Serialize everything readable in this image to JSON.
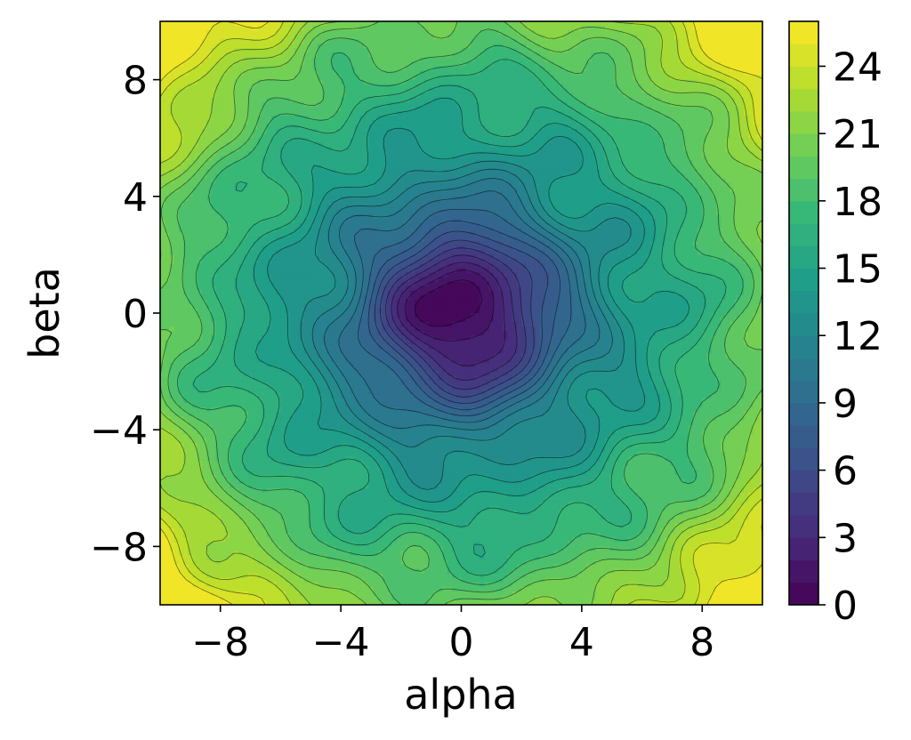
{
  "chart_data": {
    "type": "contourf",
    "title": "",
    "xlabel": "alpha",
    "ylabel": "beta",
    "xlim": [
      -10,
      10
    ],
    "ylim": [
      -10,
      10
    ],
    "x_ticks": [
      -8,
      -4,
      0,
      4,
      8
    ],
    "y_ticks": [
      -8,
      -4,
      0,
      4,
      8
    ],
    "x_tick_labels": [
      "−8",
      "−4",
      "0",
      "4",
      "8"
    ],
    "y_tick_labels": [
      "−8",
      "−4",
      "0",
      "4",
      "8"
    ],
    "colormap": "viridis",
    "colorbar": {
      "range": [
        0,
        26
      ],
      "levels": 26,
      "ticks": [
        0,
        3,
        6,
        9,
        12,
        15,
        18,
        21,
        24
      ],
      "tick_labels": [
        "0",
        "3",
        "6",
        "9",
        "12",
        "15",
        "18",
        "21",
        "24"
      ]
    },
    "surface": {
      "description": "loss surface with a single minimum near the origin",
      "minimum": {
        "alpha": 0,
        "beta": 0,
        "value": 0
      },
      "approx_values": [
        {
          "alpha": 0,
          "beta": 0,
          "value": 0.5
        },
        {
          "alpha": 0,
          "beta": 2,
          "value": 6
        },
        {
          "alpha": 3,
          "beta": 0,
          "value": 9
        },
        {
          "alpha": 0,
          "beta": -4,
          "value": 11
        },
        {
          "alpha": -5,
          "beta": 0,
          "value": 13
        },
        {
          "alpha": 5,
          "beta": 5,
          "value": 15
        },
        {
          "alpha": -8,
          "beta": 0,
          "value": 17
        },
        {
          "alpha": 0,
          "beta": -8,
          "value": 16
        },
        {
          "alpha": -10,
          "beta": 10,
          "value": 22
        },
        {
          "alpha": 10,
          "beta": 10,
          "value": 23
        },
        {
          "alpha": -10,
          "beta": -10,
          "value": 23
        },
        {
          "alpha": 10,
          "beta": -10,
          "value": 25
        }
      ]
    }
  }
}
